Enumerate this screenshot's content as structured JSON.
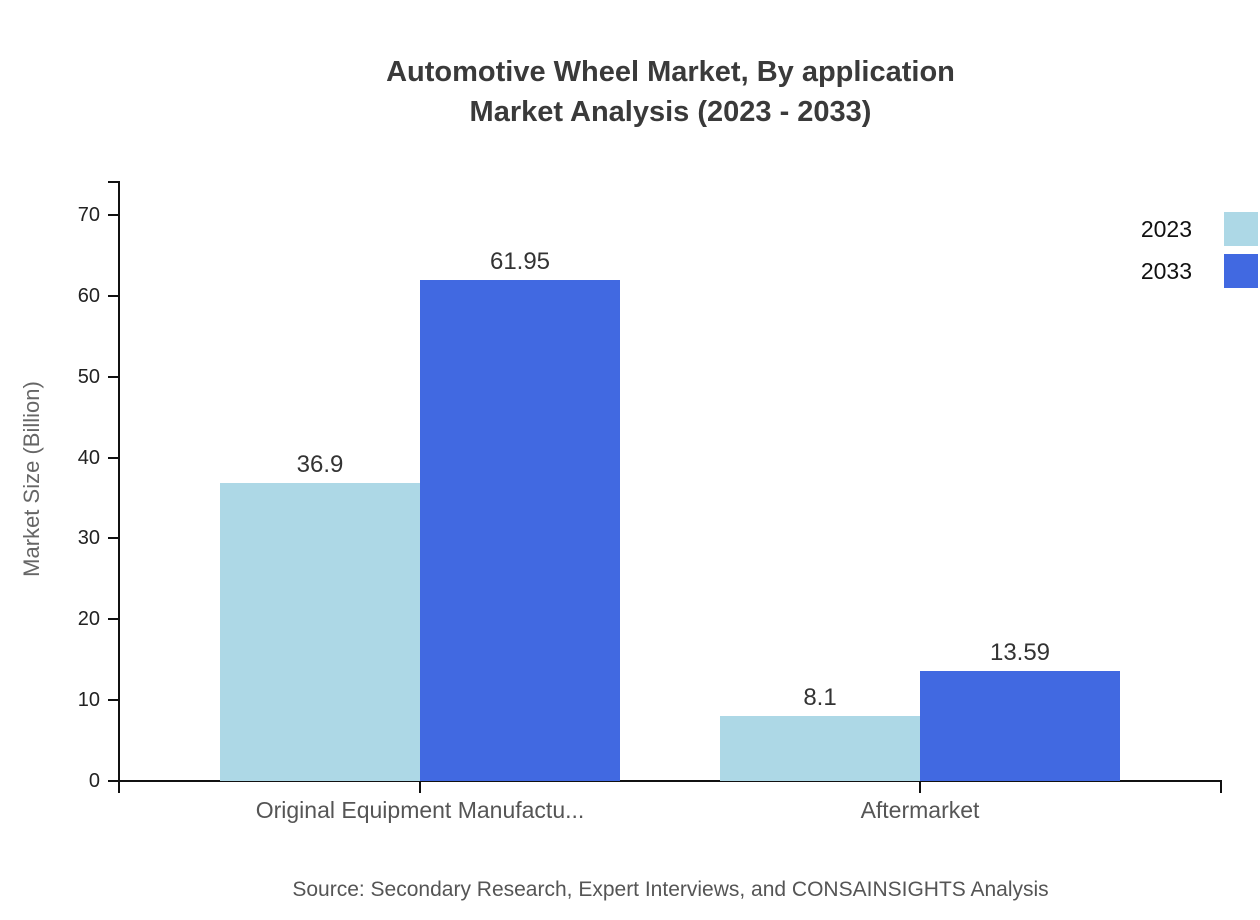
{
  "title": {
    "line1": "Automotive Wheel Market, By application",
    "line2": "Market Analysis (2023 - 2033)"
  },
  "source": "Source: Secondary Research, Expert Interviews, and CONSAINSIGHTS Analysis",
  "colors": {
    "series_2023": "#ADD8E6",
    "series_2033": "#4169E1",
    "axis": "#111111",
    "title_text": "#3a3a3a",
    "value_label_text": "#333333",
    "muted_text": "#555555"
  },
  "legend": {
    "items": [
      {
        "label": "2023",
        "color": "#ADD8E6"
      },
      {
        "label": "2033",
        "color": "#4169E1"
      }
    ]
  },
  "chart_data": {
    "type": "bar",
    "title": "Automotive Wheel Market, By application Market Analysis (2023 - 2033)",
    "categories": [
      "Original Equipment Manufactu...",
      "Aftermarket"
    ],
    "series": [
      {
        "name": "2023",
        "color": "#ADD8E6",
        "values": [
          36.9,
          8.1
        ]
      },
      {
        "name": "2033",
        "color": "#4169E1",
        "values": [
          61.95,
          13.59
        ]
      }
    ],
    "data_labels": [
      [
        "36.9",
        "8.1"
      ],
      [
        "61.95",
        "13.59"
      ]
    ],
    "xlabel": "",
    "ylabel": "Market Size (Billion)",
    "ylim": [
      0,
      70
    ],
    "yticks": [
      0,
      10,
      20,
      30,
      40,
      50,
      60,
      70
    ],
    "grid": false,
    "legend_position": "top-right"
  }
}
